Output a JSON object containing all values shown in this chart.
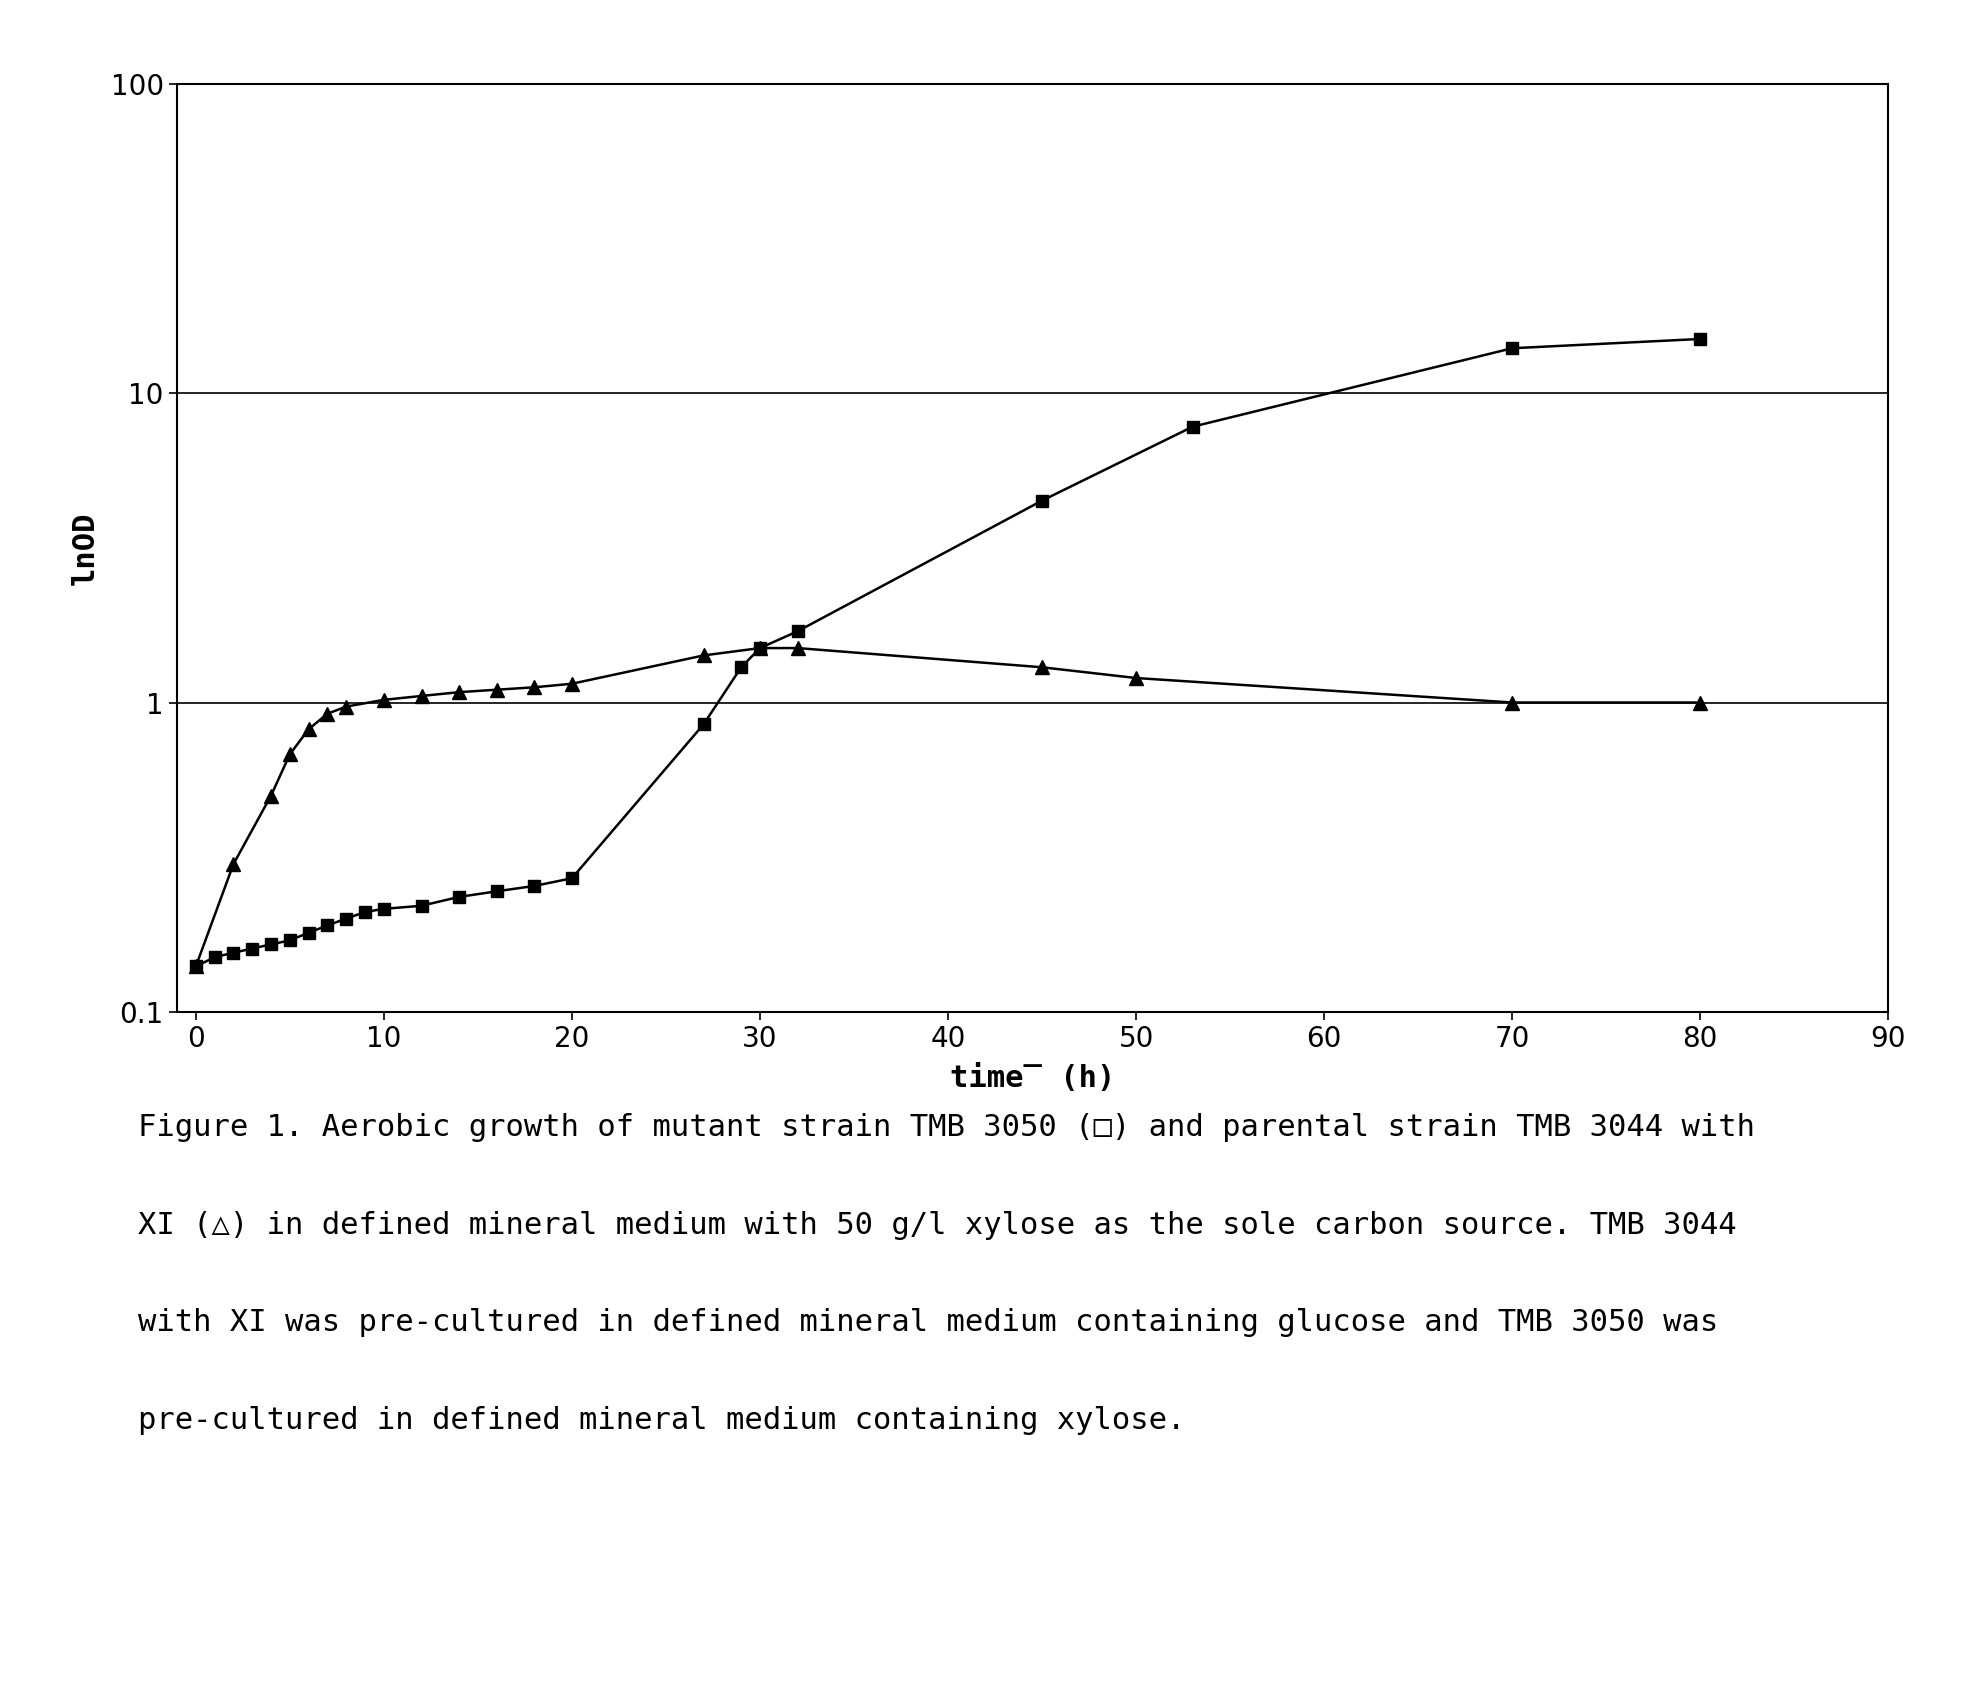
{
  "title": "",
  "xlabel": "time̅ (h)",
  "ylabel": "lnOD",
  "xlim": [
    -1,
    90
  ],
  "ylim_log": [
    0.1,
    100
  ],
  "background_color": "#ffffff",
  "square_series": {
    "x": [
      0,
      1,
      2,
      3,
      4,
      5,
      6,
      7,
      8,
      9,
      10,
      12,
      14,
      16,
      18,
      20,
      27,
      29,
      30,
      32,
      45,
      53,
      70,
      80
    ],
    "y": [
      0.14,
      0.15,
      0.155,
      0.16,
      0.165,
      0.17,
      0.18,
      0.19,
      0.2,
      0.21,
      0.215,
      0.22,
      0.235,
      0.245,
      0.255,
      0.27,
      0.85,
      1.3,
      1.5,
      1.7,
      4.5,
      7.8,
      14.0,
      15.0
    ],
    "color": "#000000",
    "marker": "s",
    "markersize": 8
  },
  "triangle_series": {
    "x": [
      0,
      2,
      4,
      5,
      6,
      7,
      8,
      10,
      12,
      14,
      16,
      18,
      20,
      27,
      30,
      32,
      45,
      50,
      70,
      80
    ],
    "y": [
      0.14,
      0.3,
      0.5,
      0.68,
      0.82,
      0.92,
      0.97,
      1.02,
      1.05,
      1.08,
      1.1,
      1.12,
      1.15,
      1.42,
      1.5,
      1.5,
      1.3,
      1.2,
      1.0,
      1.0
    ],
    "color": "#000000",
    "marker": "^",
    "markersize": 10
  },
  "caption_line1": "Figure 1. Aerobic growth of mutant strain TMB 3050 (□) and parental strain TMB 3044 with",
  "caption_line2": "XI (△) in defined mineral medium with 50 g/l xylose as the sole carbon source. TMB 3044",
  "caption_line3": "with XI was pre-cultured in defined mineral medium containing glucose and TMB 3050 was",
  "caption_line4": "pre-cultured in defined mineral medium containing xylose.",
  "caption_fontsize": 22,
  "axis_label_fontsize": 22,
  "tick_fontsize": 20,
  "line_width": 1.8
}
